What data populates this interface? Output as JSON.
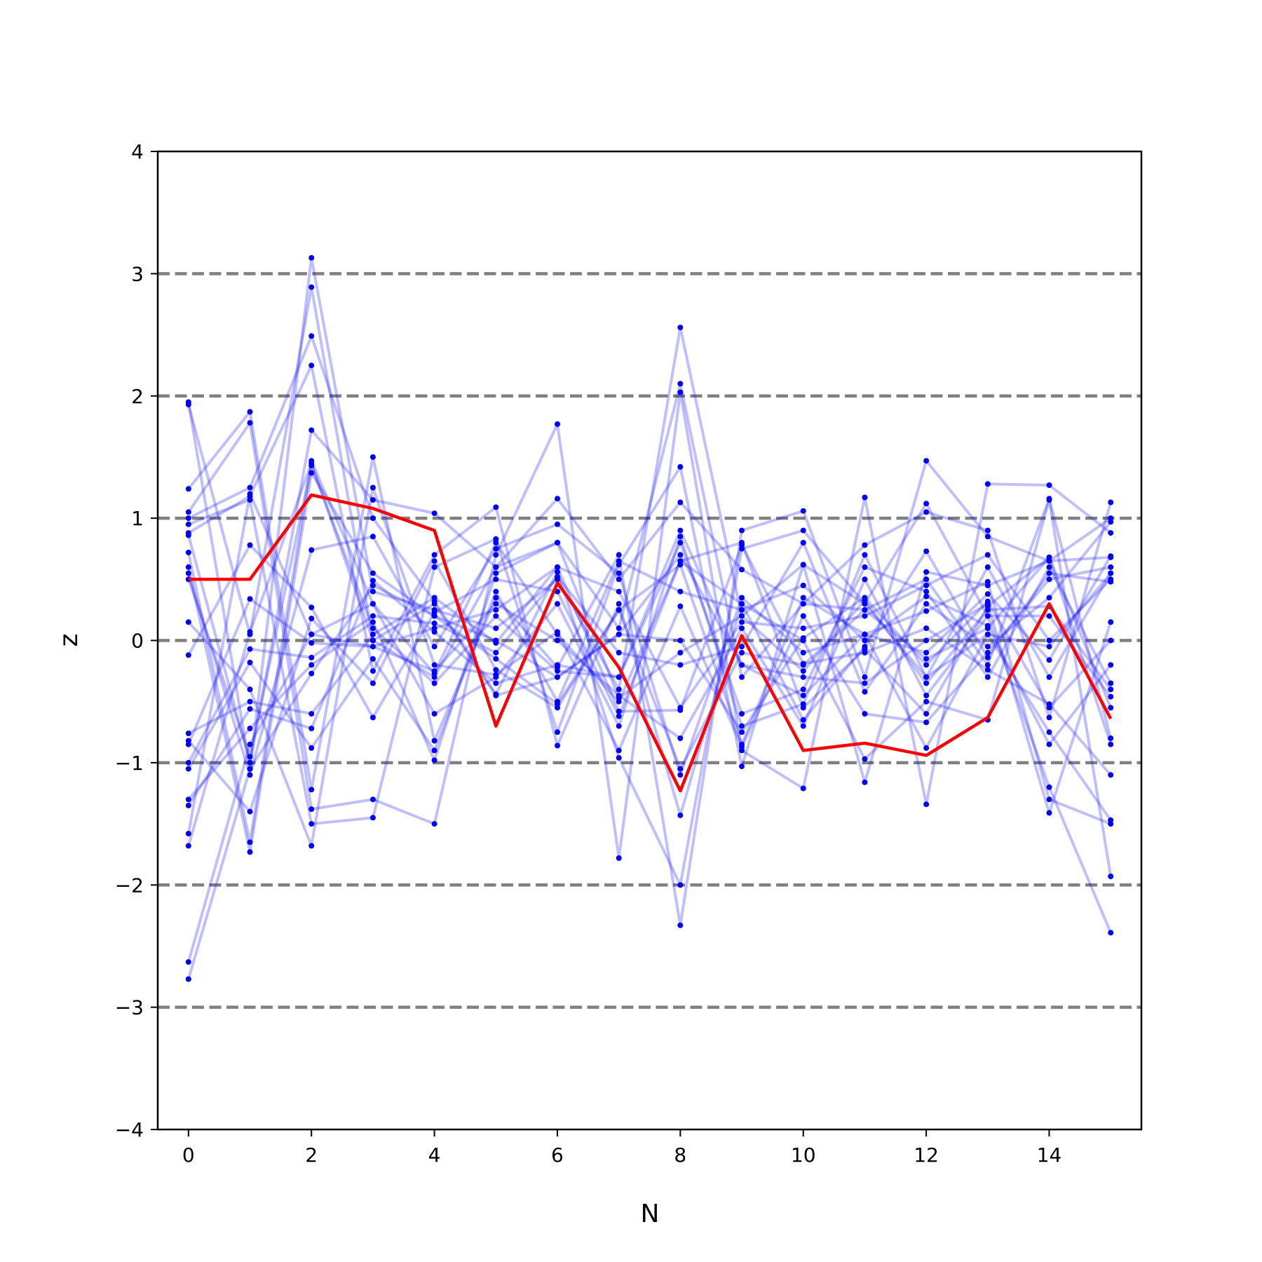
{
  "chart_data": {
    "type": "line",
    "xlabel": "N",
    "ylabel": "z",
    "xlim": [
      -0.5,
      15.5
    ],
    "ylim": [
      -4,
      4
    ],
    "xticks": [
      0,
      2,
      4,
      6,
      8,
      10,
      12,
      14
    ],
    "xtick_labels": [
      "0",
      "2",
      "4",
      "6",
      "8",
      "10",
      "12",
      "14"
    ],
    "yticks": [
      -4,
      -3,
      -2,
      -1,
      0,
      1,
      2,
      3,
      4
    ],
    "ytick_labels": [
      "−4",
      "−3",
      "−2",
      "−1",
      "0",
      "1",
      "2",
      "3",
      "4"
    ],
    "reference_lines": [
      -3,
      -2,
      -1,
      0,
      1,
      2,
      3
    ],
    "reference_line_color": "#808080",
    "x": [
      0,
      1,
      2,
      3,
      4,
      5,
      6,
      7,
      8,
      9,
      10,
      11,
      12,
      13,
      14,
      15
    ],
    "highlight_series": {
      "color": "#ff0000",
      "values": [
        0.5,
        0.5,
        1.19,
        1.08,
        0.9,
        -0.7,
        0.47,
        -0.22,
        -1.23,
        0.04,
        -0.9,
        -0.84,
        -0.94,
        -0.63,
        0.3,
        -0.64
      ]
    },
    "background_series_color": "#0000ff",
    "background_series": [
      [
        1.95,
        -1.05,
        3.13,
        0.4,
        0.25,
        0.1,
        0.5,
        -0.4,
        2.56,
        0.2,
        0.62,
        0.3,
        -0.3,
        0.6,
        -0.3,
        0.55
      ],
      [
        1.93,
        0.05,
        2.89,
        0.0,
        -0.3,
        0.6,
        0.8,
        0.1,
        2.1,
        -0.3,
        0.3,
        0.25,
        0.5,
        -0.2,
        1.16,
        -0.8
      ],
      [
        1.24,
        1.87,
        -1.22,
        1.5,
        -0.82,
        0.35,
        -0.22,
        0.7,
        -2.33,
        0.9,
        1.06,
        -0.3,
        1.47,
        0.85,
        0.65,
        1.0
      ],
      [
        1.05,
        1.78,
        -1.38,
        -1.3,
        -1.5,
        0.7,
        1.77,
        -1.78,
        2.03,
        -0.9,
        -1.21,
        1.17,
        -1.34,
        1.28,
        1.27,
        0.88
      ],
      [
        1.0,
        1.25,
        2.49,
        1.0,
        0.32,
        -0.44,
        0.56,
        -0.96,
        -2.0,
        0.75,
        0.9,
        0.3,
        1.12,
        0.2,
        -1.2,
        -2.39
      ],
      [
        0.95,
        1.15,
        -1.5,
        -1.45,
        0.6,
        0.83,
        -0.75,
        0.62,
        1.42,
        -1.03,
        0.62,
        -1.16,
        0.56,
        0.45,
        0.65,
        0.68
      ],
      [
        0.88,
        1.18,
        2.25,
        -0.25,
        0.7,
        1.09,
        -0.86,
        0.3,
        -1.43,
        0.3,
        0.0,
        -0.97,
        -0.5,
        -0.65,
        1.15,
        -1.93
      ],
      [
        0.86,
        -1.0,
        1.72,
        1.15,
        1.04,
        0.6,
        1.16,
        0.5,
        1.13,
        0.58,
        0.3,
        0.78,
        1.05,
        0.9,
        -0.63,
        1.13
      ],
      [
        0.72,
        -1.65,
        1.47,
        0.3,
        -0.6,
        -0.3,
        0.3,
        -0.7,
        0.85,
        -0.7,
        -0.52,
        0.7,
        -0.3,
        0.05,
        -0.75,
        -1.47
      ],
      [
        0.6,
        -1.73,
        1.37,
        0.55,
        0.2,
        0.0,
        -0.3,
        0.05,
        0.7,
        -0.2,
        -0.3,
        -0.35,
        0.0,
        0.3,
        -1.41,
        0.15
      ],
      [
        0.55,
        -1.1,
        0.74,
        0.85,
        -0.05,
        0.75,
        0.95,
        0.55,
        -1.1,
        0.35,
        -0.1,
        0.05,
        0.24,
        0.48,
        -1.3,
        -1.5
      ],
      [
        0.5,
        -0.95,
        1.43,
        0.1,
        -0.35,
        0.2,
        -0.25,
        -0.3,
        0.8,
        -0.6,
        -0.4,
        0.6,
        0.4,
        -0.3,
        0.6,
        -0.35
      ],
      [
        0.15,
        -0.4,
        -1.68,
        1.25,
        -0.2,
        -0.28,
        0.07,
        -0.9,
        0.28,
        -0.87,
        0.2,
        -0.6,
        -0.67,
        -0.1,
        0.5,
        0.6
      ],
      [
        -0.12,
        0.78,
        0.27,
        -0.63,
        0.23,
        0.5,
        0.4,
        -0.62,
        0.65,
        0.8,
        -0.55,
        -0.07,
        -0.6,
        0.28,
        0.68,
        -0.85
      ],
      [
        -0.76,
        -0.5,
        -0.6,
        0.05,
        0.35,
        -0.02,
        0.6,
        0.4,
        -0.55,
        0.15,
        0.1,
        0.2,
        0.45,
        0.7,
        0.0,
        0.5
      ],
      [
        -0.82,
        -1.4,
        0.18,
        -0.35,
        0.65,
        -0.24,
        -0.55,
        0.25,
        0.62,
        -0.85,
        0.35,
        0.05,
        -0.1,
        0.38,
        -0.16,
        0.69
      ],
      [
        -0.85,
        0.34,
        -0.02,
        -0.05,
        -0.25,
        0.3,
        0.0,
        -0.45,
        -0.8,
        0.1,
        -0.7,
        0.5,
        -0.45,
        0.2,
        0.2,
        -0.46
      ],
      [
        -1.0,
        -0.07,
        -0.14,
        0.2,
        0.14,
        -0.1,
        0.52,
        -0.1,
        -0.2,
        -0.05,
        0.8,
        -0.42,
        0.3,
        -0.05,
        0.35,
        0.97
      ],
      [
        -1.05,
        -0.18,
        -0.88,
        -0.15,
        -0.9,
        0.4,
        -0.5,
        0.65,
        0.4,
        0.25,
        0.45,
        0.0,
        0.36,
        0.12,
        -0.85,
        -0.2
      ],
      [
        -1.3,
        -0.72,
        -0.2,
        0.15,
        -0.98,
        0.55,
        0.8,
        -0.47,
        -0.1,
        0.2,
        -0.25,
        0.33,
        -0.35,
        0.25,
        0.28,
        -0.4
      ],
      [
        -1.35,
        -0.56,
        -0.72,
        0.49,
        0.07,
        -0.35,
        -0.2,
        -0.3,
        0.9,
        -0.2,
        -0.45,
        0.05,
        -0.88,
        0.05,
        -0.05,
        0.55
      ],
      [
        -1.58,
        1.2,
        0.05,
        -0.05,
        0.1,
        0.25,
        0.6,
        -0.58,
        -0.57,
        0.78,
        -0.19,
        -0.1,
        0.1,
        -0.24,
        -0.52,
        -1.1
      ],
      [
        -1.68,
        0.07,
        1.45,
        0.0,
        0.3,
        -0.45,
        -0.3,
        0.05,
        0.0,
        -0.75,
        0.02,
        0.35,
        -0.2,
        0.32,
        -0.55,
        0.0
      ],
      [
        -2.63,
        -0.85,
        0.05,
        0.3,
        -0.27,
        0.8,
        0.05,
        -0.5,
        0.65,
        0.3,
        -0.65,
        -0.05,
        0.73,
        -0.14,
        0.55,
        0.48
      ],
      [
        -2.77,
        -1.05,
        -0.27,
        0.45,
        0.2,
        -0.15,
        -0.52,
        0.25,
        -1.05,
        -0.1,
        -0.2,
        0.25,
        -0.15,
        0.1,
        0.68,
        -0.55
      ]
    ]
  }
}
